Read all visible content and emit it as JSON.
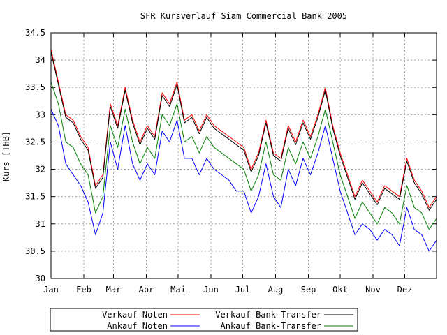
{
  "chart_data": {
    "type": "line",
    "title": "SFR Kursverlauf Siam Commercial Bank 2005",
    "xlabel": "",
    "ylabel": "Kurs [THB]",
    "ylim": [
      30,
      34.5
    ],
    "xlim": [
      "2005-01-01",
      "2005-12-31"
    ],
    "grid": true,
    "legend_position": "bottom",
    "y_ticks": [
      "30",
      "30.5",
      "31",
      "31.5",
      "32",
      "32.5",
      "33",
      "33.5",
      "34",
      "34.5"
    ],
    "y_tick_values": [
      30,
      30.5,
      31,
      31.5,
      32,
      32.5,
      33,
      33.5,
      34,
      34.5
    ],
    "x_ticks": [
      {
        "label": "Jan",
        "date": "2005-01-01"
      },
      {
        "label": "Feb",
        "date": "2005-02-01"
      },
      {
        "label": "Mar",
        "date": "2005-03-01"
      },
      {
        "label": "Apr",
        "date": "2005-04-01"
      },
      {
        "label": "Mai",
        "date": "2005-05-01"
      },
      {
        "label": "Jun",
        "date": "2005-06-01"
      },
      {
        "label": "Jul",
        "date": "2005-07-01"
      },
      {
        "label": "Aug",
        "date": "2005-08-01"
      },
      {
        "label": "Sep",
        "date": "2005-09-01"
      },
      {
        "label": "Okt",
        "date": "2005-10-01"
      },
      {
        "label": "Nov",
        "date": "2005-11-01"
      },
      {
        "label": "Dez",
        "date": "2005-12-01"
      }
    ],
    "x": [
      "2005-01-01",
      "2005-01-08",
      "2005-01-15",
      "2005-01-22",
      "2005-01-29",
      "2005-02-05",
      "2005-02-12",
      "2005-02-19",
      "2005-02-26",
      "2005-03-05",
      "2005-03-12",
      "2005-03-19",
      "2005-03-26",
      "2005-04-02",
      "2005-04-09",
      "2005-04-16",
      "2005-04-23",
      "2005-04-30",
      "2005-05-07",
      "2005-05-14",
      "2005-05-21",
      "2005-05-28",
      "2005-06-04",
      "2005-06-11",
      "2005-06-18",
      "2005-06-25",
      "2005-07-02",
      "2005-07-09",
      "2005-07-16",
      "2005-07-23",
      "2005-07-30",
      "2005-08-06",
      "2005-08-13",
      "2005-08-20",
      "2005-08-27",
      "2005-09-03",
      "2005-09-10",
      "2005-09-17",
      "2005-09-24",
      "2005-10-01",
      "2005-10-08",
      "2005-10-15",
      "2005-10-22",
      "2005-10-29",
      "2005-11-05",
      "2005-11-12",
      "2005-11-19",
      "2005-11-26",
      "2005-12-03",
      "2005-12-10",
      "2005-12-17",
      "2005-12-24",
      "2005-12-31"
    ],
    "series": [
      {
        "name": "Verkauf Noten",
        "color": "#ff0000",
        "values": [
          34.2,
          33.6,
          33.0,
          32.9,
          32.6,
          32.4,
          31.7,
          31.9,
          33.2,
          32.8,
          33.5,
          32.9,
          32.5,
          32.8,
          32.6,
          33.4,
          33.2,
          33.6,
          32.9,
          33.0,
          32.7,
          33.0,
          32.8,
          32.7,
          32.6,
          32.5,
          32.4,
          32.0,
          32.3,
          32.9,
          32.3,
          32.2,
          32.8,
          32.5,
          32.9,
          32.6,
          33.0,
          33.5,
          32.8,
          32.3,
          31.9,
          31.5,
          31.8,
          31.6,
          31.4,
          31.7,
          31.6,
          31.5,
          32.2,
          31.8,
          31.6,
          31.3,
          31.5
        ]
      },
      {
        "name": "Verkauf Bank-Transfer",
        "color": "#000000",
        "values": [
          34.15,
          33.55,
          32.95,
          32.85,
          32.55,
          32.35,
          31.65,
          31.85,
          33.15,
          32.75,
          33.45,
          32.85,
          32.45,
          32.75,
          32.55,
          33.35,
          33.15,
          33.55,
          32.85,
          32.95,
          32.65,
          32.95,
          32.75,
          32.65,
          32.55,
          32.45,
          32.35,
          31.95,
          32.25,
          32.85,
          32.25,
          32.15,
          32.75,
          32.45,
          32.85,
          32.55,
          32.95,
          33.45,
          32.75,
          32.25,
          31.85,
          31.45,
          31.75,
          31.55,
          31.35,
          31.65,
          31.55,
          31.45,
          32.15,
          31.75,
          31.55,
          31.25,
          31.45
        ]
      },
      {
        "name": "Ankauf Noten",
        "color": "#0000ff",
        "values": [
          33.1,
          32.8,
          32.1,
          31.9,
          31.7,
          31.4,
          30.8,
          31.2,
          32.5,
          32.0,
          32.8,
          32.1,
          31.8,
          32.1,
          31.9,
          32.7,
          32.5,
          32.9,
          32.2,
          32.2,
          31.9,
          32.2,
          32.0,
          31.9,
          31.8,
          31.6,
          31.6,
          31.2,
          31.5,
          32.1,
          31.5,
          31.3,
          32.0,
          31.7,
          32.2,
          31.9,
          32.3,
          32.8,
          32.2,
          31.6,
          31.2,
          30.8,
          31.0,
          30.9,
          30.7,
          30.9,
          30.8,
          30.6,
          31.3,
          30.9,
          30.8,
          30.5,
          30.7
        ]
      },
      {
        "name": "Ankauf Bank-Transfer",
        "color": "#008000",
        "values": [
          33.6,
          33.2,
          32.5,
          32.4,
          32.1,
          31.9,
          31.2,
          31.5,
          32.8,
          32.4,
          33.1,
          32.5,
          32.1,
          32.4,
          32.2,
          33.0,
          32.8,
          33.2,
          32.5,
          32.6,
          32.3,
          32.6,
          32.4,
          32.3,
          32.2,
          32.1,
          32.0,
          31.6,
          31.9,
          32.5,
          31.9,
          31.8,
          32.4,
          32.1,
          32.5,
          32.2,
          32.6,
          33.1,
          32.5,
          31.9,
          31.5,
          31.1,
          31.4,
          31.2,
          31.0,
          31.3,
          31.2,
          31.0,
          31.7,
          31.3,
          31.2,
          30.9,
          31.1
        ]
      }
    ]
  }
}
